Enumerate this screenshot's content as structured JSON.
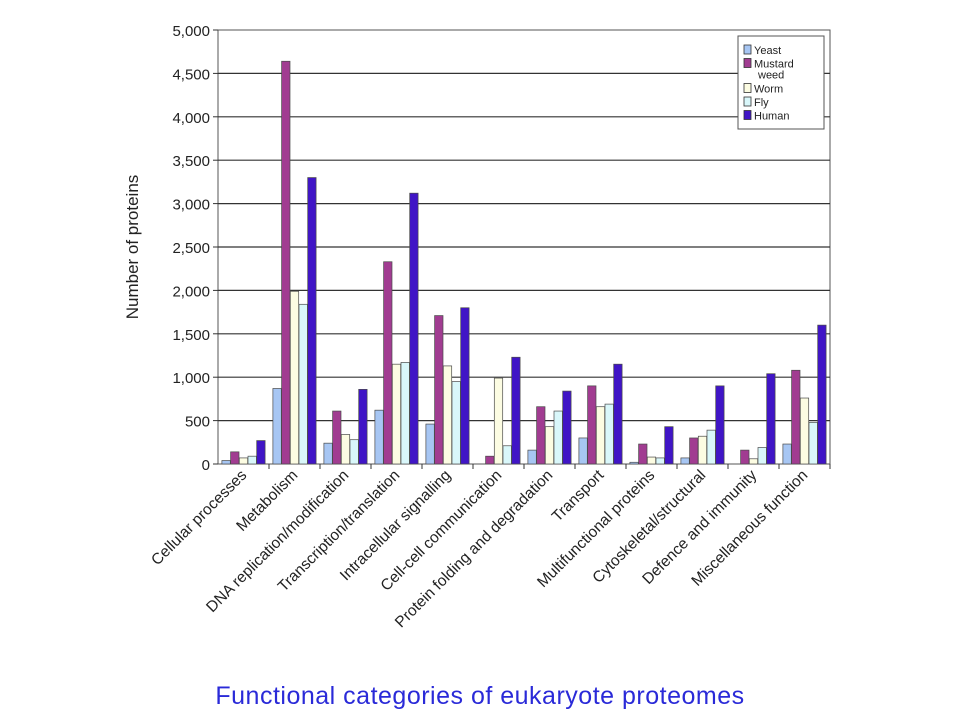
{
  "caption": "Functional categories of eukaryote proteomes",
  "chart_data": {
    "type": "bar",
    "title": "",
    "xlabel": "",
    "ylabel": "Number of proteins",
    "ylim": [
      0,
      5000
    ],
    "yticks": [
      "0",
      "500",
      "1,000",
      "1,500",
      "2,000",
      "2,500",
      "3,000",
      "3,500",
      "4,000",
      "4,500",
      "5,000"
    ],
    "grid": true,
    "legend_position": "top-right",
    "categories": [
      "Cellular processes",
      "Metabolism",
      "DNA replication/modification",
      "Transcription/translation",
      "Intracellular signalling",
      "Cell-cell communication",
      "Protein folding and degradation",
      "Transport",
      "Multifunctional proteins",
      "Cytoskeletal/structural",
      "Defence and immunity",
      "Miscellaneous function"
    ],
    "series": [
      {
        "name": "Yeast",
        "color": "#a7c6f3",
        "values": [
          40,
          870,
          240,
          620,
          460,
          0,
          160,
          300,
          20,
          70,
          0,
          230
        ]
      },
      {
        "name": "Mustard weed",
        "color": "#a13c91",
        "values": [
          140,
          4640,
          610,
          2330,
          1710,
          90,
          660,
          900,
          230,
          300,
          160,
          1080
        ]
      },
      {
        "name": "Worm",
        "color": "#fcfce2",
        "values": [
          70,
          1990,
          340,
          1150,
          1130,
          990,
          430,
          660,
          80,
          320,
          60,
          760
        ]
      },
      {
        "name": "Fly",
        "color": "#d9f7fa",
        "values": [
          90,
          1840,
          280,
          1170,
          950,
          210,
          610,
          690,
          70,
          390,
          190,
          480
        ]
      },
      {
        "name": "Human",
        "color": "#4015c6",
        "values": [
          270,
          3300,
          860,
          3120,
          1800,
          1230,
          840,
          1150,
          430,
          900,
          1040,
          1600
        ]
      }
    ]
  }
}
